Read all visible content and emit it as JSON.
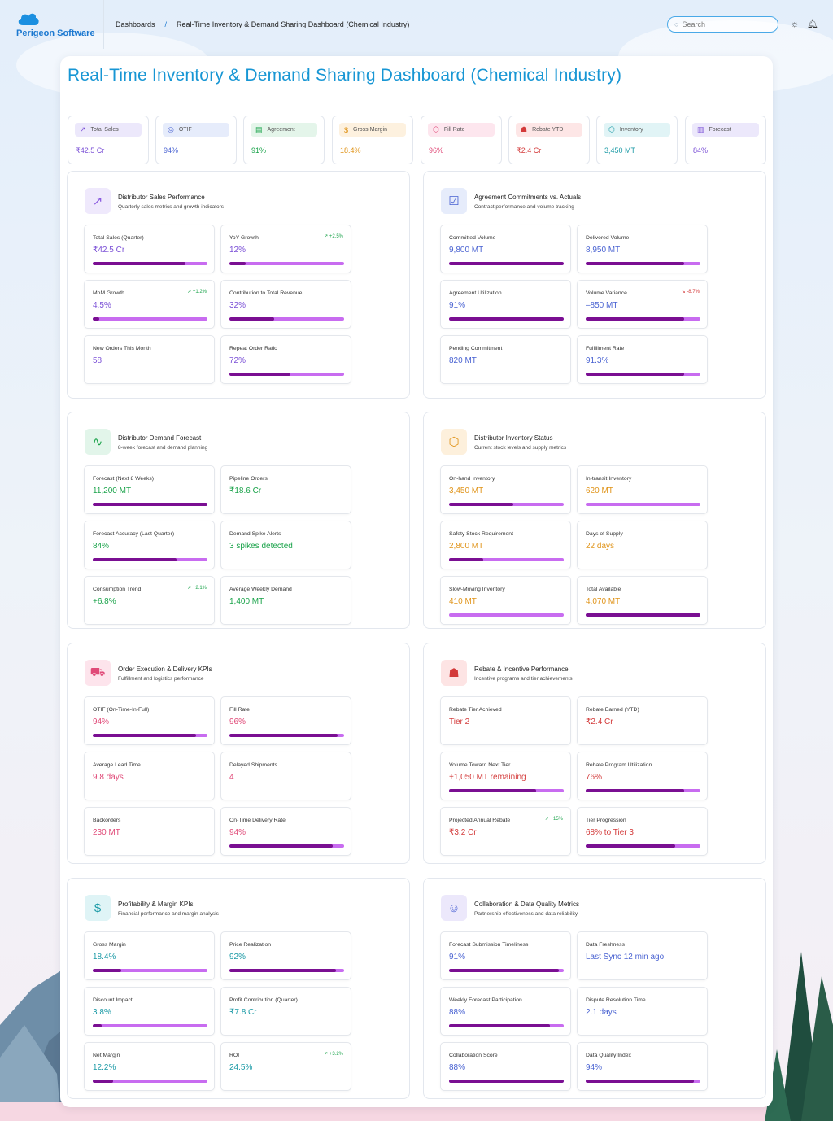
{
  "brand": {
    "name": "Perigeon Software"
  },
  "breadcrumb": {
    "root": "Dashboards",
    "separator": "/",
    "current": "Real-Time Inventory & Demand Sharing Dashboard (Chemical Industry)"
  },
  "search": {
    "placeholder": "Search"
  },
  "page_title": "Real-Time Inventory & Demand Sharing Dashboard (Chemical Industry)",
  "kpis": [
    {
      "label": "Total Sales",
      "value": "₹42.5 Cr",
      "icon": "trend-up-icon",
      "color": "#7a4fd6"
    },
    {
      "label": "OTIF",
      "value": "94%",
      "icon": "target-icon",
      "color": "#4a63d2"
    },
    {
      "label": "Agreement",
      "value": "91%",
      "icon": "document-icon",
      "color": "#1aa34a"
    },
    {
      "label": "Gross Margin",
      "value": "18.4%",
      "icon": "dollar-icon",
      "color": "#e0941a"
    },
    {
      "label": "Fill Rate",
      "value": "96%",
      "icon": "box-icon",
      "color": "#e04a78"
    },
    {
      "label": "Rebate YTD",
      "value": "₹2.4 Cr",
      "icon": "award-icon",
      "color": "#d33a3a"
    },
    {
      "label": "Inventory",
      "value": "3,450 MT",
      "icon": "box-icon",
      "color": "#1b9aa6"
    },
    {
      "label": "Forecast",
      "value": "84%",
      "icon": "bar-chart-icon",
      "color": "#7a4fd6"
    }
  ],
  "sections": [
    {
      "title": "Distributor Sales Performance",
      "subtitle": "Quarterly sales metrics and growth indicators",
      "icon": "trend-up-icon",
      "metrics": [
        {
          "label": "Total Sales (Quarter)",
          "value": "₹42.5 Cr",
          "progress": 0.81
        },
        {
          "label": "YoY Growth",
          "value": "12%",
          "delta": "+2.5%",
          "delta_dir": "up",
          "progress": 0.14
        },
        {
          "label": "MoM Growth",
          "value": "4.5%",
          "delta": "+1.2%",
          "delta_dir": "up",
          "progress": 0.06
        },
        {
          "label": "Contribution to Total Revenue",
          "value": "32%",
          "progress": 0.39
        },
        {
          "label": "New Orders This Month",
          "value": "58"
        },
        {
          "label": "Repeat Order Ratio",
          "value": "72%",
          "progress": 0.53
        }
      ]
    },
    {
      "title": "Agreement Commitments vs. Actuals",
      "subtitle": "Contract performance and volume tracking",
      "icon": "document-check-icon",
      "metrics": [
        {
          "label": "Committed Volume",
          "value": "9,800 MT",
          "progress": 1.0
        },
        {
          "label": "Delivered Volume",
          "value": "8,950 MT",
          "progress": 0.86
        },
        {
          "label": "Agreement Utilization",
          "value": "91%",
          "progress": 1.0
        },
        {
          "label": "Volume Variance",
          "value": "–850 MT",
          "delta": "-8.7%",
          "delta_dir": "down",
          "progress": 0.86
        },
        {
          "label": "Pending Commitment",
          "value": "820 MT"
        },
        {
          "label": "Fulfillment Rate",
          "value": "91.3%",
          "progress": 0.86
        }
      ]
    },
    {
      "title": "Distributor Demand Forecast",
      "subtitle": "8-week forecast and demand planning",
      "icon": "pulse-icon",
      "metrics": [
        {
          "label": "Forecast (Next 8 Weeks)",
          "value": "11,200 MT",
          "progress": 1.0
        },
        {
          "label": "Pipeline Orders",
          "value": "₹18.6 Cr"
        },
        {
          "label": "Forecast Accuracy (Last Quarter)",
          "value": "84%",
          "progress": 0.73
        },
        {
          "label": "Demand Spike Alerts",
          "value": "3 spikes detected"
        },
        {
          "label": "Consumption Trend",
          "value": "+6.8%",
          "delta": "+2.1%",
          "delta_dir": "up"
        },
        {
          "label": "Average Weekly Demand",
          "value": "1,400 MT"
        }
      ]
    },
    {
      "title": "Distributor Inventory Status",
      "subtitle": "Current stock levels and supply metrics",
      "icon": "box-icon",
      "metrics": [
        {
          "label": "On-hand Inventory",
          "value": "3,450 MT",
          "progress": 0.56
        },
        {
          "label": "In-transit Inventory",
          "value": "620 MT",
          "progress": 0.0
        },
        {
          "label": "Safety Stock Requirement",
          "value": "2,800 MT",
          "progress": 0.3
        },
        {
          "label": "Days of Supply",
          "value": "22 days"
        },
        {
          "label": "Slow-Moving Inventory",
          "value": "410 MT",
          "progress": 0.0
        },
        {
          "label": "Total Available",
          "value": "4,070 MT",
          "progress": 1.0
        }
      ]
    },
    {
      "title": "Order Execution & Delivery KPIs",
      "subtitle": "Fulfillment and logistics performance",
      "icon": "truck-icon",
      "metrics": [
        {
          "label": "OTIF (On-Time-In-Full)",
          "value": "94%",
          "progress": 0.9
        },
        {
          "label": "Fill Rate",
          "value": "96%",
          "progress": 0.94
        },
        {
          "label": "Average Lead Time",
          "value": "9.8 days"
        },
        {
          "label": "Delayed Shipments",
          "value": "4"
        },
        {
          "label": "Backorders",
          "value": "230 MT"
        },
        {
          "label": "On-Time Delivery Rate",
          "value": "94%",
          "progress": 0.9
        }
      ]
    },
    {
      "title": "Rebate & Incentive Performance",
      "subtitle": "Incentive programs and tier achievements",
      "icon": "award-icon",
      "metrics": [
        {
          "label": "Rebate Tier Achieved",
          "value": "Tier 2"
        },
        {
          "label": "Rebate Earned (YTD)",
          "value": "₹2.4 Cr"
        },
        {
          "label": "Volume Toward Next Tier",
          "value": "+1,050 MT remaining",
          "progress": 0.76
        },
        {
          "label": "Rebate Program Utilization",
          "value": "76%",
          "progress": 0.86
        },
        {
          "label": "Projected Annual Rebate",
          "value": "₹3.2 Cr",
          "delta": "+15%",
          "delta_dir": "up"
        },
        {
          "label": "Tier Progression",
          "value": "68% to Tier 3",
          "progress": 0.78
        }
      ]
    },
    {
      "title": "Profitability & Margin KPIs",
      "subtitle": "Financial performance and margin analysis",
      "icon": "dollar-icon",
      "metrics": [
        {
          "label": "Gross Margin",
          "value": "18.4%",
          "progress": 0.25
        },
        {
          "label": "Price Realization",
          "value": "92%",
          "progress": 0.93
        },
        {
          "label": "Discount Impact",
          "value": "3.8%",
          "progress": 0.08
        },
        {
          "label": "Profit Contribution (Quarter)",
          "value": "₹7.8 Cr"
        },
        {
          "label": "Net Margin",
          "value": "12.2%",
          "progress": 0.18
        },
        {
          "label": "ROI",
          "value": "24.5%",
          "delta": "+3.2%",
          "delta_dir": "up"
        }
      ]
    },
    {
      "title": "Collaboration & Data Quality Metrics",
      "subtitle": "Partnership effectiveness and data reliability",
      "icon": "users-icon",
      "metrics": [
        {
          "label": "Forecast Submission Timeliness",
          "value": "91%",
          "progress": 0.96
        },
        {
          "label": "Data Freshness",
          "value": "Last Sync 12 min ago"
        },
        {
          "label": "Weekly Forecast Participation",
          "value": "88%",
          "progress": 0.88
        },
        {
          "label": "Dispute Resolution Time",
          "value": "2.1 days"
        },
        {
          "label": "Collaboration Score",
          "value": "88%",
          "progress": 1.0
        },
        {
          "label": "Data Quality Index",
          "value": "94%",
          "progress": 0.94
        }
      ]
    }
  ],
  "colors": {
    "accent": "#1796d4",
    "bar_fill": "#7a0f92",
    "bar_track": "#c86cf0"
  }
}
